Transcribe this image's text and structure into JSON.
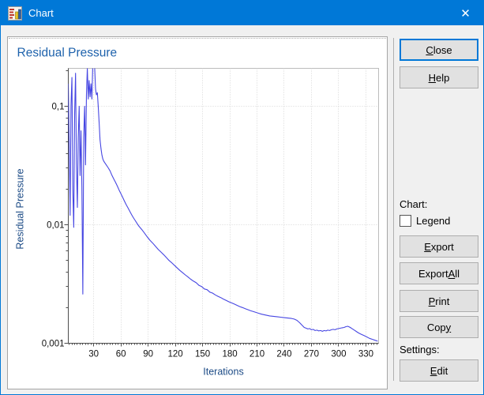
{
  "window": {
    "title": "Chart"
  },
  "icons": {
    "close": "✕"
  },
  "buttons": {
    "close": {
      "label": "Close",
      "underline": 0
    },
    "help": {
      "label": "Help",
      "underline": 0
    },
    "export": {
      "label": "Export",
      "underline": 0
    },
    "export_all": {
      "label": "Export All",
      "underline": 7
    },
    "print": {
      "label": "Print",
      "underline": 0
    },
    "copy": {
      "label": "Copy",
      "underline": 3
    },
    "edit": {
      "label": "Edit",
      "underline": 0
    }
  },
  "sections": {
    "chart_label": "Chart:",
    "legend_label": "Legend",
    "legend_checked": false,
    "settings_label": "Settings:"
  },
  "chart_data": {
    "type": "line",
    "title": "Residual Pressure",
    "xlabel": "Iterations",
    "ylabel": "Residual Pressure",
    "x_scale": "linear",
    "y_scale": "log",
    "xlim": [
      2,
      344
    ],
    "ylim": [
      0.00105,
      0.209
    ],
    "x_ticks": [
      30,
      60,
      90,
      120,
      150,
      180,
      210,
      240,
      270,
      300,
      330
    ],
    "y_ticks": [
      {
        "value": 0.1,
        "label": "0,1"
      },
      {
        "value": 0.01,
        "label": "0,01"
      },
      {
        "value": 0.001,
        "label": "0,001"
      }
    ],
    "grid": true,
    "legend": false,
    "colors": {
      "line": "#4646e2",
      "grid": "#d6d6d6",
      "axis": "#4d4d4d",
      "frame": "#bcbcbc",
      "title": "#1e62ac",
      "axis_label": "#1b4a85",
      "tick": "#111111"
    },
    "series": [
      {
        "name": "Residual Pressure",
        "points": [
          [
            2,
            0.155
          ],
          [
            3,
            0.05
          ],
          [
            4,
            0.012
          ],
          [
            5,
            0.1
          ],
          [
            6,
            0.175
          ],
          [
            7,
            0.02
          ],
          [
            8,
            0.0095
          ],
          [
            9,
            0.085
          ],
          [
            10,
            0.19
          ],
          [
            11,
            0.032
          ],
          [
            12,
            0.014
          ],
          [
            13,
            0.055
          ],
          [
            14,
            0.1
          ],
          [
            15,
            0.026
          ],
          [
            16,
            0.062
          ],
          [
            17,
            0.021
          ],
          [
            18,
            0.0026
          ],
          [
            19,
            0.055
          ],
          [
            20,
            0.1
          ],
          [
            21,
            0.032
          ],
          [
            22,
            0.125
          ],
          [
            23,
            0.21
          ],
          [
            24,
            0.115
          ],
          [
            25,
            0.165
          ],
          [
            26,
            0.12
          ],
          [
            27,
            0.155
          ],
          [
            28,
            0.115
          ],
          [
            29,
            0.23
          ],
          [
            30,
            0.3
          ],
          [
            31,
            0.22
          ],
          [
            32,
            0.14
          ],
          [
            33,
            0.125
          ],
          [
            34,
            0.13
          ],
          [
            35,
            0.1
          ],
          [
            36,
            0.072
          ],
          [
            37,
            0.052
          ],
          [
            38,
            0.044
          ],
          [
            39,
            0.039
          ],
          [
            40,
            0.036
          ],
          [
            41,
            0.0345
          ],
          [
            42,
            0.0335
          ],
          [
            44,
            0.0318
          ],
          [
            46,
            0.0302
          ],
          [
            48,
            0.0285
          ],
          [
            50,
            0.0262
          ],
          [
            52,
            0.0244
          ],
          [
            54,
            0.0228
          ],
          [
            56,
            0.0212
          ],
          [
            58,
            0.0196
          ],
          [
            60,
            0.0183
          ],
          [
            62,
            0.017
          ],
          [
            64,
            0.0158
          ],
          [
            66,
            0.0147
          ],
          [
            68,
            0.0138
          ],
          [
            70,
            0.0129
          ],
          [
            72,
            0.0121
          ],
          [
            74,
            0.0114
          ],
          [
            76,
            0.0108
          ],
          [
            78,
            0.0102
          ],
          [
            80,
            0.0097
          ],
          [
            83,
            0.0091
          ],
          [
            86,
            0.0085
          ],
          [
            89,
            0.0079
          ],
          [
            92,
            0.0074
          ],
          [
            95,
            0.007
          ],
          [
            98,
            0.0066
          ],
          [
            101,
            0.0062
          ],
          [
            104,
            0.0059
          ],
          [
            107,
            0.0056
          ],
          [
            110,
            0.0053
          ],
          [
            113,
            0.005
          ],
          [
            116,
            0.00478
          ],
          [
            119,
            0.00455
          ],
          [
            122,
            0.00432
          ],
          [
            125,
            0.00412
          ],
          [
            128,
            0.00394
          ],
          [
            131,
            0.00377
          ],
          [
            134,
            0.00362
          ],
          [
            137,
            0.00347
          ],
          [
            140,
            0.00334
          ],
          [
            143,
            0.00324
          ],
          [
            146,
            0.00308
          ],
          [
            149,
            0.00301
          ],
          [
            152,
            0.00287
          ],
          [
            155,
            0.00283
          ],
          [
            158,
            0.0027
          ],
          [
            161,
            0.00265
          ],
          [
            164,
            0.00256
          ],
          [
            167,
            0.00249
          ],
          [
            170,
            0.00243
          ],
          [
            173,
            0.00236
          ],
          [
            176,
            0.0023
          ],
          [
            179,
            0.00224
          ],
          [
            182,
            0.00219
          ],
          [
            185,
            0.00214
          ],
          [
            188,
            0.00209
          ],
          [
            191,
            0.00204
          ],
          [
            194,
            0.002
          ],
          [
            197,
            0.00196
          ],
          [
            200,
            0.00192
          ],
          [
            203,
            0.00188
          ],
          [
            206,
            0.00185
          ],
          [
            209,
            0.00182
          ],
          [
            212,
            0.00179
          ],
          [
            215,
            0.00176
          ],
          [
            218,
            0.00174
          ],
          [
            221,
            0.00172
          ],
          [
            224,
            0.0017
          ],
          [
            227,
            0.00169
          ],
          [
            230,
            0.00168
          ],
          [
            233,
            0.00167
          ],
          [
            236,
            0.00166
          ],
          [
            239,
            0.00165
          ],
          [
            242,
            0.00164
          ],
          [
            245,
            0.00163
          ],
          [
            248,
            0.00162
          ],
          [
            251,
            0.0016
          ],
          [
            254,
            0.00156
          ],
          [
            257,
            0.00149
          ],
          [
            260,
            0.00141
          ],
          [
            262,
            0.00136
          ],
          [
            264,
            0.00134
          ],
          [
            266,
            0.00132
          ],
          [
            268,
            0.00133
          ],
          [
            270,
            0.0013
          ],
          [
            272,
            0.00131
          ],
          [
            274,
            0.00128
          ],
          [
            276,
            0.00129
          ],
          [
            278,
            0.00127
          ],
          [
            280,
            0.00128
          ],
          [
            282,
            0.00126
          ],
          [
            284,
            0.00128
          ],
          [
            286,
            0.00127
          ],
          [
            288,
            0.00129
          ],
          [
            290,
            0.00128
          ],
          [
            292,
            0.0013
          ],
          [
            294,
            0.00131
          ],
          [
            296,
            0.0013
          ],
          [
            298,
            0.00132
          ],
          [
            300,
            0.00133
          ],
          [
            302,
            0.00134
          ],
          [
            304,
            0.00135
          ],
          [
            306,
            0.00136
          ],
          [
            308,
            0.00138
          ],
          [
            310,
            0.00139
          ],
          [
            312,
            0.00137
          ],
          [
            314,
            0.00134
          ],
          [
            316,
            0.00131
          ],
          [
            318,
            0.00128
          ],
          [
            320,
            0.00125
          ],
          [
            322,
            0.00122
          ],
          [
            325,
            0.00119
          ],
          [
            328,
            0.00116
          ],
          [
            331,
            0.00113
          ],
          [
            334,
            0.0011
          ],
          [
            337,
            0.00108
          ],
          [
            340,
            0.00106
          ],
          [
            343,
            0.00104
          ]
        ]
      }
    ]
  }
}
